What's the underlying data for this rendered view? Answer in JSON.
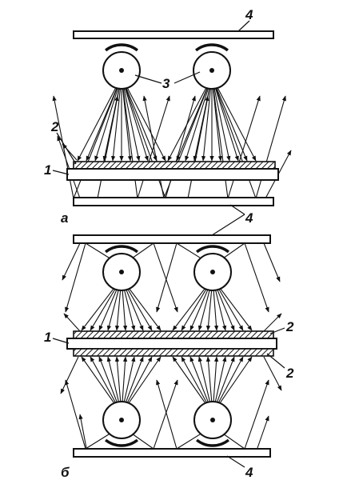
{
  "panel_a": {
    "letter": "а",
    "labels": {
      "glass": "1",
      "coating": "2",
      "lamp": "3",
      "mirror_top": "4",
      "mirror_bottom": "4"
    }
  },
  "panel_b": {
    "letter": "б",
    "labels": {
      "glass": "1",
      "coating_top": "2",
      "coating_bottom": "2",
      "mirror": "4"
    }
  }
}
